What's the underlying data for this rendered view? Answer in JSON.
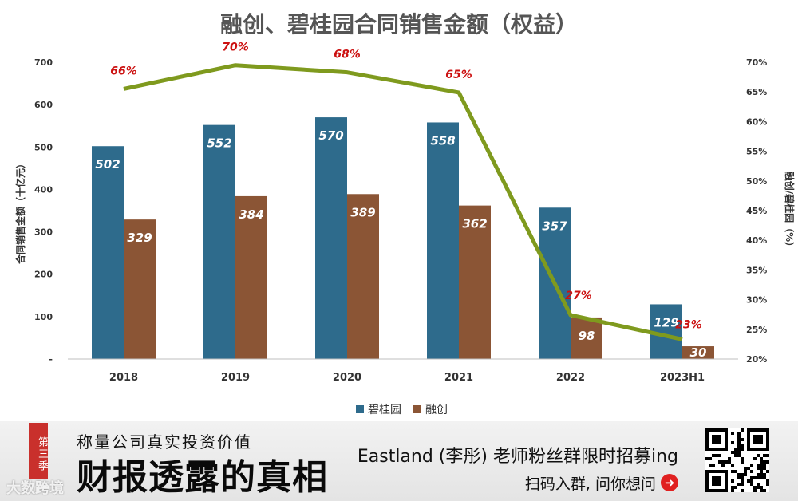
{
  "chart_data": {
    "type": "bar+line",
    "title": "融创、碧桂园合同销售金额（权益）",
    "ylabel": "合同销售金额（十亿元）",
    "y2label": "融创/碧桂园（%）",
    "categories": [
      "2018",
      "2019",
      "2020",
      "2021",
      "2022",
      "2023H1"
    ],
    "ylim": [
      0,
      700
    ],
    "yticks": [
      "-",
      "100",
      "200",
      "300",
      "400",
      "500",
      "600",
      "700"
    ],
    "y2lim": [
      20,
      70
    ],
    "y2ticks": [
      "20%",
      "25%",
      "30%",
      "35%",
      "40%",
      "45%",
      "50%",
      "55%",
      "60%",
      "65%",
      "70%"
    ],
    "series": [
      {
        "name": "碧桂园",
        "type": "bar",
        "color": "#2e6b8c",
        "values": [
          502,
          552,
          570,
          558,
          357,
          129
        ],
        "labels": [
          "502",
          "552",
          "570",
          "558",
          "357",
          "129"
        ]
      },
      {
        "name": "融创",
        "type": "bar",
        "color": "#8b5535",
        "values": [
          329,
          384,
          389,
          362,
          98,
          30
        ],
        "labels": [
          "329",
          "384",
          "389",
          "362",
          "98",
          "30"
        ]
      },
      {
        "name": "融创/碧桂园",
        "type": "line",
        "axis": "y2",
        "color": "#7f9a1e",
        "values": [
          65.5,
          69.5,
          68.3,
          64.9,
          27.4,
          23.3
        ],
        "labels": [
          "66%",
          "70%",
          "68%",
          "65%",
          "27%",
          "23%"
        ]
      }
    ],
    "legend": [
      "碧桂园",
      "融创"
    ],
    "legend_position": "bottom"
  },
  "banner": {
    "season": "第三季",
    "tagline": "称量公司真实投资价值",
    "headline": "财报透露的真相",
    "recruit": "Eastland (李彤) 老师粉丝群限时招募ing",
    "scan": "扫码入群, 问你想问",
    "watermark": "大数跨境",
    "arrow_icon": "➜"
  }
}
